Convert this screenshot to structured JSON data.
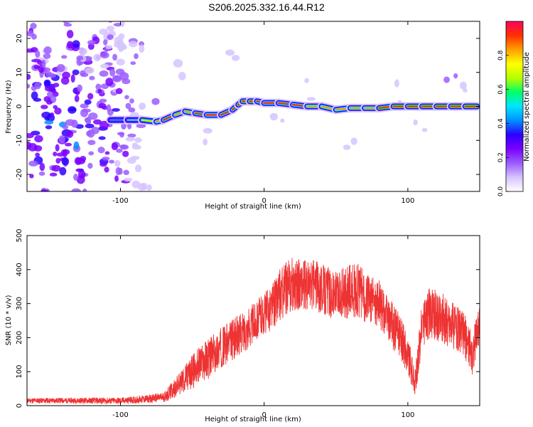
{
  "figure": {
    "title": "S206.2025.332.16.44.R12"
  },
  "chart_data": [
    {
      "type": "heatmap",
      "title": "S206.2025.332.16.44.R12",
      "xlabel": "Height of straight line (km)",
      "ylabel": "Frequency (Hz)",
      "xlim": [
        -165,
        150
      ],
      "ylim": [
        -25,
        25
      ],
      "x_ticks": [
        -100,
        0,
        100
      ],
      "y_ticks": [
        -20,
        -10,
        0,
        10,
        20
      ],
      "grid": false,
      "colorbar": {
        "label": "Normalized spectral amplitude",
        "range": [
          0,
          1
        ],
        "ticks": [
          "0.0",
          "0.2",
          "0.4",
          "0.6",
          "0.8"
        ],
        "colormap": [
          "#ffffff",
          "#d6c3ff",
          "#9b5cff",
          "#7a00ff",
          "#2b00ff",
          "#0090ff",
          "#00e5ff",
          "#00ff66",
          "#b6ff00",
          "#ffff00",
          "#ffa000",
          "#ff3000",
          "#ff0060"
        ]
      },
      "ridge": {
        "description": "dominant frequency track vs height",
        "x": [
          -107,
          -95,
          -85,
          -75,
          -70,
          -62,
          -55,
          -48,
          -40,
          -30,
          -22,
          -18,
          -15,
          -10,
          -5,
          0,
          10,
          20,
          30,
          40,
          50,
          60,
          70,
          80,
          90,
          100,
          110,
          120,
          130,
          140,
          148
        ],
        "freq": [
          -4,
          -4,
          -4,
          -4.5,
          -4,
          -2.5,
          -1.5,
          -2,
          -2.5,
          -2.5,
          -1,
          0.5,
          1.5,
          1.5,
          1.5,
          1,
          1,
          0.5,
          0,
          0,
          -1,
          -0.5,
          -0.5,
          -0.5,
          0,
          0,
          0,
          0,
          0,
          0,
          0
        ],
        "amplitude": [
          0.35,
          0.45,
          0.5,
          0.75,
          0.9,
          0.85,
          0.8,
          0.85,
          0.9,
          0.9,
          0.85,
          0.9,
          0.95,
          0.95,
          0.9,
          0.85,
          0.9,
          0.9,
          0.85,
          0.85,
          0.8,
          0.85,
          0.8,
          0.9,
          0.95,
          0.95,
          0.95,
          0.95,
          0.95,
          0.95,
          0.95
        ]
      },
      "noise": {
        "description": "scattered low-amplitude noise blobs (mostly at heights below -80 km)",
        "x": [
          -160,
          -155,
          -150,
          -145,
          -140,
          -135,
          -130,
          -125,
          -120,
          -115,
          -110,
          -105,
          -100,
          -95,
          -90,
          -85,
          -80,
          -160,
          -150,
          -140,
          -130,
          -120,
          -110,
          -100,
          -90,
          -162,
          -152,
          -142,
          -132,
          -122,
          -112,
          -102,
          -92,
          -158,
          -148,
          -138,
          -128,
          -118,
          -108,
          -98,
          -157,
          -147,
          -137,
          -127,
          -117,
          -107,
          -97,
          -60,
          -40,
          -20,
          10,
          30,
          60,
          90,
          110,
          130,
          140
        ],
        "freq": [
          20,
          15,
          5,
          -5,
          -12,
          18,
          8,
          -18,
          12,
          0,
          -15,
          22,
          6,
          -8,
          16,
          -20,
          3,
          -10,
          -22,
          10,
          2,
          -5,
          9,
          -14,
          -2,
          5,
          13,
          -16,
          -9,
          20,
          15,
          12,
          -12,
          -18,
          0,
          22,
          -22,
          5,
          -3,
          -19,
          10,
          7,
          -7,
          14,
          -11,
          18,
          21,
          10,
          -8,
          14,
          -6,
          5,
          -9,
          3,
          -5,
          8,
          4
        ],
        "amplitude": [
          0.25,
          0.2,
          0.3,
          0.35,
          0.3,
          0.25,
          0.3,
          0.35,
          0.2,
          0.25,
          0.3,
          0.15,
          0.2,
          0.18,
          0.15,
          0.12,
          0.12,
          0.3,
          0.25,
          0.2,
          0.28,
          0.32,
          0.22,
          0.2,
          0.15,
          0.3,
          0.25,
          0.3,
          0.35,
          0.18,
          0.2,
          0.15,
          0.12,
          0.3,
          0.28,
          0.22,
          0.25,
          0.3,
          0.3,
          0.2,
          0.28,
          0.32,
          0.3,
          0.2,
          0.26,
          0.18,
          0.12,
          0.1,
          0.08,
          0.08,
          0.08,
          0.08,
          0.1,
          0.08,
          0.08,
          0.12,
          0.1
        ]
      }
    },
    {
      "type": "line",
      "xlabel": "Height of straight line (km)",
      "ylabel": "SNR (10 * v/v)",
      "xlim": [
        -165,
        150
      ],
      "ylim": [
        0,
        500
      ],
      "x_ticks": [
        -100,
        0,
        100
      ],
      "y_ticks": [
        0,
        100,
        200,
        300,
        400,
        500
      ],
      "grid": false,
      "series": [
        {
          "name": "SNR",
          "color": "#ee3333",
          "envelope": {
            "x": [
              -165,
              -140,
              -120,
              -100,
              -80,
              -70,
              -65,
              -60,
              -55,
              -50,
              -45,
              -40,
              -35,
              -30,
              -25,
              -20,
              -15,
              -10,
              -5,
              0,
              5,
              10,
              15,
              20,
              25,
              30,
              35,
              40,
              45,
              50,
              55,
              60,
              65,
              70,
              75,
              80,
              85,
              90,
              95,
              100,
              105,
              110,
              115,
              120,
              125,
              130,
              135,
              140,
              145,
              150
            ],
            "mean": [
              15,
              15,
              15,
              14,
              20,
              25,
              40,
              60,
              80,
              100,
              120,
              135,
              150,
              170,
              185,
              200,
              215,
              230,
              255,
              270,
              290,
              320,
              345,
              360,
              355,
              350,
              355,
              345,
              335,
              320,
              330,
              335,
              340,
              320,
              310,
              300,
              260,
              230,
              200,
              150,
              60,
              240,
              270,
              265,
              255,
              240,
              230,
              200,
              150,
              250
            ],
            "amplitude": [
              8,
              8,
              9,
              10,
              12,
              15,
              25,
              30,
              40,
              50,
              55,
              60,
              60,
              60,
              60,
              60,
              60,
              60,
              60,
              60,
              70,
              80,
              80,
              80,
              75,
              75,
              75,
              75,
              75,
              75,
              75,
              80,
              80,
              75,
              70,
              70,
              70,
              70,
              65,
              60,
              40,
              70,
              75,
              75,
              75,
              70,
              70,
              65,
              60,
              70
            ]
          }
        }
      ]
    }
  ]
}
